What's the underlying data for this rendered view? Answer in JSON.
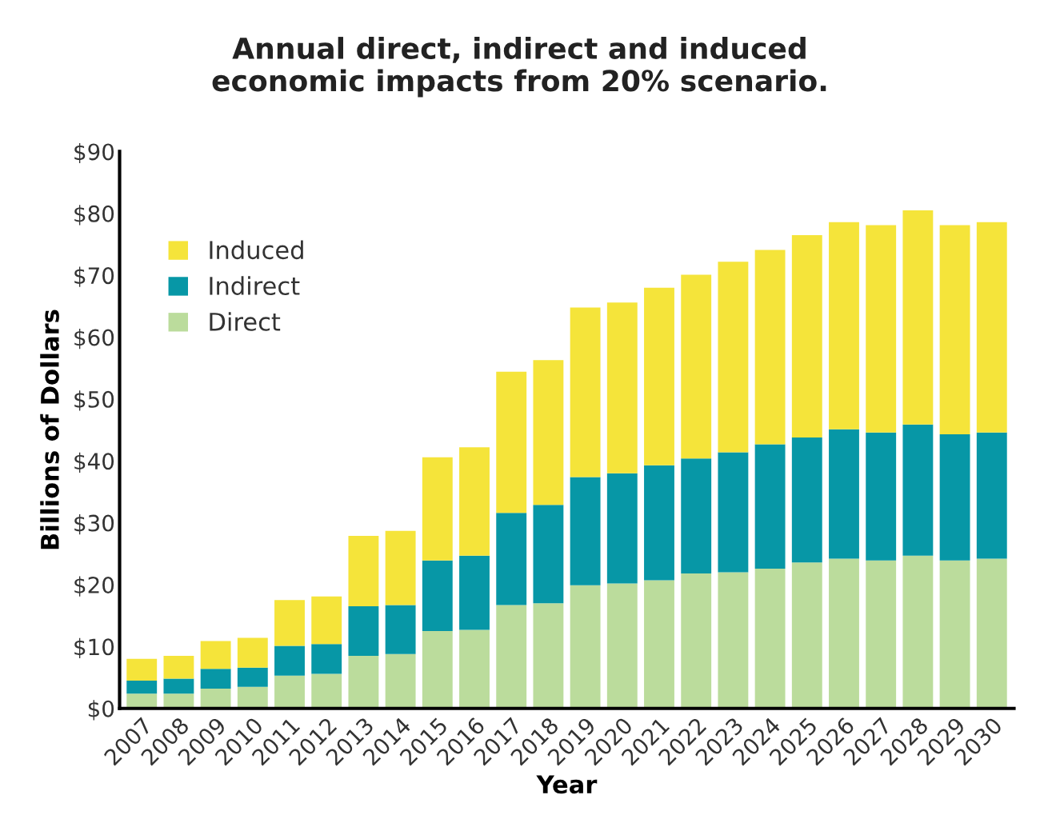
{
  "chart_data": {
    "type": "bar",
    "title": "Annual direct, indirect and induced\neconomic impacts from 20% scenario.",
    "xlabel": "Year",
    "ylabel": "Billions of Dollars",
    "categories": [
      "2007",
      "2008",
      "2009",
      "2010",
      "2011",
      "2012",
      "2013",
      "2014",
      "2015",
      "2016",
      "2017",
      "2018",
      "2019",
      "2020",
      "2021",
      "2022",
      "2023",
      "2024",
      "2025",
      "2026",
      "2027",
      "2028",
      "2029",
      "2030"
    ],
    "stacked": true,
    "series": [
      {
        "name": "Direct",
        "color": "#bbdc9c",
        "values": [
          2.4,
          2.4,
          3.2,
          3.5,
          5.3,
          5.6,
          8.5,
          8.8,
          12.5,
          12.7,
          16.7,
          17.0,
          19.9,
          20.2,
          20.7,
          21.8,
          22.0,
          22.6,
          23.6,
          24.2,
          23.9,
          24.7,
          23.9,
          24.2
        ]
      },
      {
        "name": "Indirect",
        "color": "#0797a6",
        "values": [
          2.1,
          2.4,
          3.2,
          3.1,
          4.8,
          4.8,
          8.0,
          7.9,
          11.4,
          12.0,
          14.9,
          15.9,
          17.5,
          17.8,
          18.6,
          18.6,
          19.4,
          20.1,
          20.2,
          20.9,
          20.7,
          21.2,
          20.4,
          20.4
        ]
      },
      {
        "name": "Induced",
        "color": "#f5e43a",
        "values": [
          3.5,
          3.7,
          4.5,
          4.8,
          7.4,
          7.7,
          11.4,
          12.0,
          16.7,
          17.5,
          22.8,
          23.4,
          27.4,
          27.6,
          28.7,
          29.7,
          30.8,
          31.4,
          32.7,
          33.5,
          33.5,
          34.6,
          33.8,
          34.0
        ]
      }
    ],
    "ylim": [
      0,
      90
    ],
    "yticks": [
      {
        "value": 0,
        "label": "$0"
      },
      {
        "value": 10,
        "label": "$10"
      },
      {
        "value": 20,
        "label": "$20"
      },
      {
        "value": 30,
        "label": "$30"
      },
      {
        "value": 40,
        "label": "$40"
      },
      {
        "value": 50,
        "label": "$50"
      },
      {
        "value": 60,
        "label": "$60"
      },
      {
        "value": 70,
        "label": "$70"
      },
      {
        "value": 80,
        "label": "$80"
      },
      {
        "value": 90,
        "label": "$90"
      }
    ],
    "legend": "top left"
  }
}
